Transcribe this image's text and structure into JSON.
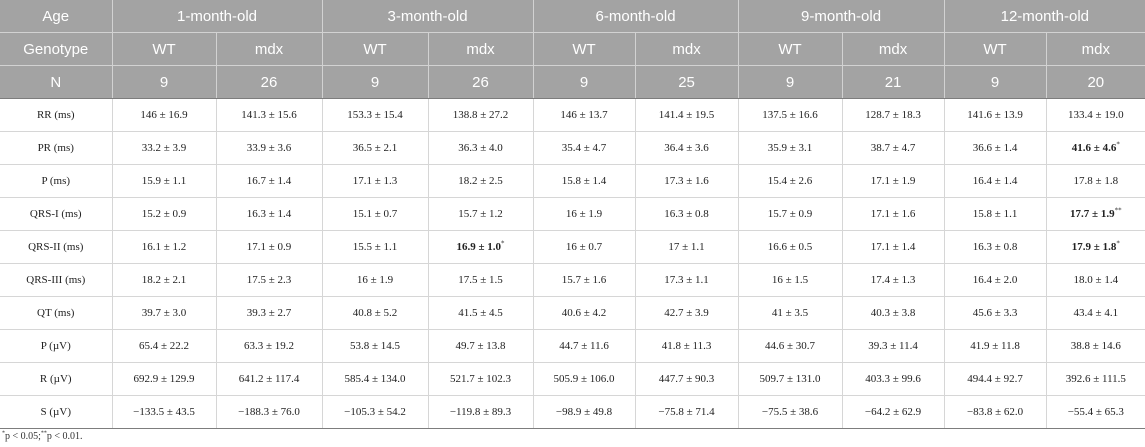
{
  "header": {
    "age_label": "Age",
    "ages": [
      "1-month-old",
      "3-month-old",
      "6-month-old",
      "9-month-old",
      "12-month-old"
    ],
    "genotype_label": "Genotype",
    "genotypes": [
      "WT",
      "mdx",
      "WT",
      "mdx",
      "WT",
      "mdx",
      "WT",
      "mdx",
      "WT",
      "mdx"
    ],
    "n_label": "N",
    "n_values": [
      "9",
      "26",
      "9",
      "26",
      "9",
      "25",
      "9",
      "21",
      "9",
      "20"
    ]
  },
  "rows": [
    {
      "label": "RR (ms)",
      "cells": [
        {
          "v": "146 ± 16.9"
        },
        {
          "v": "141.3 ± 15.6"
        },
        {
          "v": "153.3 ± 15.4"
        },
        {
          "v": "138.8 ± 27.2"
        },
        {
          "v": "146 ± 13.7"
        },
        {
          "v": "141.4 ± 19.5"
        },
        {
          "v": "137.5 ± 16.6"
        },
        {
          "v": "128.7 ± 18.3"
        },
        {
          "v": "141.6 ± 13.9"
        },
        {
          "v": "133.4 ± 19.0"
        }
      ]
    },
    {
      "label": "PR (ms)",
      "cells": [
        {
          "v": "33.2 ± 3.9"
        },
        {
          "v": "33.9 ± 3.6"
        },
        {
          "v": "36.5 ± 2.1"
        },
        {
          "v": "36.3 ± 4.0"
        },
        {
          "v": "35.4 ± 4.7"
        },
        {
          "v": "36.4 ± 3.6"
        },
        {
          "v": "35.9 ± 3.1"
        },
        {
          "v": "38.7 ± 4.7"
        },
        {
          "v": "36.6 ± 1.4"
        },
        {
          "v": "41.6 ± 4.6",
          "bold": true,
          "sig": "*"
        }
      ]
    },
    {
      "label": "P (ms)",
      "cells": [
        {
          "v": "15.9 ± 1.1"
        },
        {
          "v": "16.7 ± 1.4"
        },
        {
          "v": "17.1 ± 1.3"
        },
        {
          "v": "18.2 ± 2.5"
        },
        {
          "v": "15.8 ± 1.4"
        },
        {
          "v": "17.3 ± 1.6"
        },
        {
          "v": "15.4 ± 2.6"
        },
        {
          "v": "17.1 ± 1.9"
        },
        {
          "v": "16.4 ± 1.4"
        },
        {
          "v": "17.8 ± 1.8"
        }
      ]
    },
    {
      "label": "QRS-I (ms)",
      "cells": [
        {
          "v": "15.2 ± 0.9"
        },
        {
          "v": "16.3 ± 1.4"
        },
        {
          "v": "15.1 ± 0.7"
        },
        {
          "v": "15.7 ± 1.2"
        },
        {
          "v": "16 ± 1.9"
        },
        {
          "v": "16.3 ± 0.8"
        },
        {
          "v": "15.7 ± 0.9"
        },
        {
          "v": "17.1 ± 1.6"
        },
        {
          "v": "15.8 ± 1.1"
        },
        {
          "v": "17.7 ± 1.9",
          "bold": true,
          "sig": "**"
        }
      ]
    },
    {
      "label": "QRS-II (ms)",
      "cells": [
        {
          "v": "16.1 ± 1.2"
        },
        {
          "v": "17.1 ± 0.9"
        },
        {
          "v": "15.5 ± 1.1"
        },
        {
          "v": "16.9 ± 1.0",
          "bold": true,
          "sig": "*"
        },
        {
          "v": "16 ± 0.7"
        },
        {
          "v": "17 ± 1.1"
        },
        {
          "v": "16.6 ± 0.5"
        },
        {
          "v": "17.1 ± 1.4"
        },
        {
          "v": "16.3 ± 0.8"
        },
        {
          "v": "17.9 ± 1.8",
          "bold": true,
          "sig": "*"
        }
      ]
    },
    {
      "label": "QRS-III (ms)",
      "cells": [
        {
          "v": "18.2 ± 2.1"
        },
        {
          "v": "17.5 ± 2.3"
        },
        {
          "v": "16 ± 1.9"
        },
        {
          "v": "17.5 ± 1.5"
        },
        {
          "v": "15.7 ± 1.6"
        },
        {
          "v": "17.3 ± 1.1"
        },
        {
          "v": "16 ± 1.5"
        },
        {
          "v": "17.4 ± 1.3"
        },
        {
          "v": "16.4 ± 2.0"
        },
        {
          "v": "18.0 ± 1.4"
        }
      ]
    },
    {
      "label": "QT (ms)",
      "cells": [
        {
          "v": "39.7 ± 3.0"
        },
        {
          "v": "39.3 ± 2.7"
        },
        {
          "v": "40.8 ± 5.2"
        },
        {
          "v": "41.5 ± 4.5"
        },
        {
          "v": "40.6 ± 4.2"
        },
        {
          "v": "42.7 ± 3.9"
        },
        {
          "v": "41 ± 3.5"
        },
        {
          "v": "40.3 ± 3.8"
        },
        {
          "v": "45.6 ± 3.3"
        },
        {
          "v": "43.4 ± 4.1"
        }
      ]
    },
    {
      "label": "P (µV)",
      "cells": [
        {
          "v": "65.4 ± 22.2"
        },
        {
          "v": "63.3 ± 19.2"
        },
        {
          "v": "53.8 ± 14.5"
        },
        {
          "v": "49.7 ± 13.8"
        },
        {
          "v": "44.7 ± 11.6"
        },
        {
          "v": "41.8 ± 11.3"
        },
        {
          "v": "44.6 ± 30.7"
        },
        {
          "v": "39.3 ± 11.4"
        },
        {
          "v": "41.9 ± 11.8"
        },
        {
          "v": "38.8 ± 14.6"
        }
      ]
    },
    {
      "label": "R (µV)",
      "cells": [
        {
          "v": "692.9 ± 129.9"
        },
        {
          "v": "641.2 ± 117.4"
        },
        {
          "v": "585.4 ± 134.0"
        },
        {
          "v": "521.7 ± 102.3"
        },
        {
          "v": "505.9 ± 106.0"
        },
        {
          "v": "447.7 ± 90.3"
        },
        {
          "v": "509.7 ± 131.0"
        },
        {
          "v": "403.3 ± 99.6"
        },
        {
          "v": "494.4 ± 92.7"
        },
        {
          "v": "392.6 ± 111.5"
        }
      ]
    },
    {
      "label": "S (µV)",
      "cells": [
        {
          "v": "−133.5 ± 43.5"
        },
        {
          "v": "−188.3 ± 76.0"
        },
        {
          "v": "−105.3 ± 54.2"
        },
        {
          "v": "−119.8 ± 89.3"
        },
        {
          "v": "−98.9 ± 49.8"
        },
        {
          "v": "−75.8 ± 71.4"
        },
        {
          "v": "−75.5 ± 38.6"
        },
        {
          "v": "−64.2 ± 62.9"
        },
        {
          "v": "−83.8 ± 62.0"
        },
        {
          "v": "−55.4 ± 65.3"
        }
      ]
    }
  ],
  "footnote": {
    "sig1": "*",
    "text1": "p < 0.05;",
    "sig2": "**",
    "text2": "p < 0.01."
  }
}
